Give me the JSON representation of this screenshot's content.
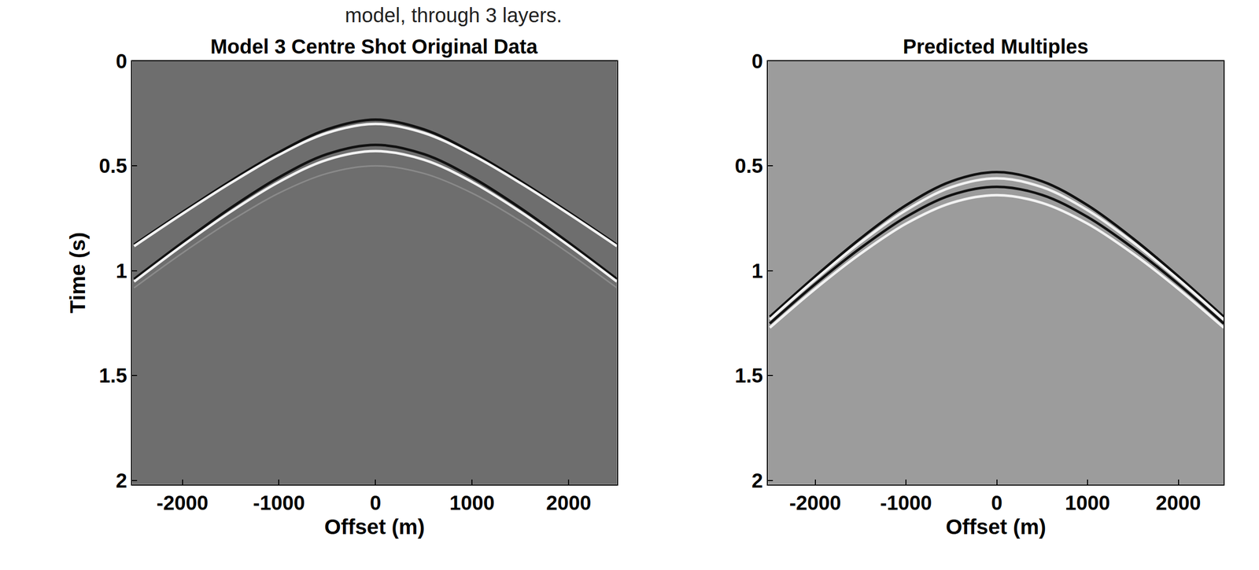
{
  "caption": "model, through 3 layers.",
  "chart_data": [
    {
      "type": "line",
      "title": "Model 3 Centre Shot Original Data",
      "x_label": "Offset (m)",
      "y_label": "Time (s)",
      "xlim": [
        -2520,
        2500
      ],
      "ylim": [
        0,
        2.02
      ],
      "xticks": [
        -2000,
        -1000,
        0,
        1000,
        2000
      ],
      "yticks": [
        0,
        0.5,
        1,
        1.5,
        2
      ],
      "x": [
        -2500,
        -2000,
        -1500,
        -1000,
        -500,
        0,
        500,
        1000,
        1500,
        2000,
        2500
      ],
      "series": [
        {
          "color": "#111111",
          "values": [
            0.876,
            0.721,
            0.572,
            0.435,
            0.326,
            0.28,
            0.326,
            0.435,
            0.572,
            0.721,
            0.876
          ]
        },
        {
          "color": "#f2f2f2",
          "values": [
            0.883,
            0.729,
            0.582,
            0.448,
            0.343,
            0.3,
            0.343,
            0.448,
            0.582,
            0.729,
            0.883
          ]
        },
        {
          "color": "#111111",
          "values": [
            1.04,
            0.866,
            0.701,
            0.555,
            0.444,
            0.4,
            0.444,
            0.555,
            0.701,
            0.866,
            1.04
          ]
        },
        {
          "color": "#f2f2f2",
          "values": [
            1.052,
            0.88,
            0.719,
            0.577,
            0.471,
            0.43,
            0.471,
            0.577,
            0.719,
            0.88,
            1.052
          ]
        },
        {
          "color": "#8a8a8a",
          "values": [
            1.082,
            0.916,
            0.763,
            0.63,
            0.536,
            0.5,
            0.536,
            0.63,
            0.763,
            0.916,
            1.082
          ]
        }
      ]
    },
    {
      "type": "line",
      "title": "Predicted Multiples",
      "x_label": "Offset (m)",
      "xlim": [
        -2520,
        2500
      ],
      "ylim": [
        0,
        2.02
      ],
      "xticks": [
        -2000,
        -1000,
        0,
        1000,
        2000
      ],
      "yticks": [
        0,
        0.5,
        1,
        1.5,
        2
      ],
      "x": [
        -2500,
        -2000,
        -1500,
        -1000,
        -500,
        0,
        500,
        1000,
        1500,
        2000,
        2500
      ],
      "series": [
        {
          "color": "#111111",
          "values": [
            1.22,
            1.027,
            0.846,
            0.688,
            0.574,
            0.53,
            0.574,
            0.688,
            0.846,
            1.027,
            1.22
          ]
        },
        {
          "color": "#f2f2f2",
          "values": [
            1.233,
            1.042,
            0.865,
            0.712,
            0.602,
            0.56,
            0.602,
            0.712,
            0.865,
            1.042,
            1.233
          ]
        },
        {
          "color": "#111111",
          "values": [
            1.252,
            1.064,
            0.892,
            0.744,
            0.639,
            0.6,
            0.639,
            0.744,
            0.892,
            1.064,
            1.252
          ]
        },
        {
          "color": "#f2f2f2",
          "values": [
            1.272,
            1.087,
            0.919,
            0.776,
            0.677,
            0.64,
            0.677,
            0.776,
            0.919,
            1.087,
            1.272
          ]
        }
      ]
    }
  ]
}
